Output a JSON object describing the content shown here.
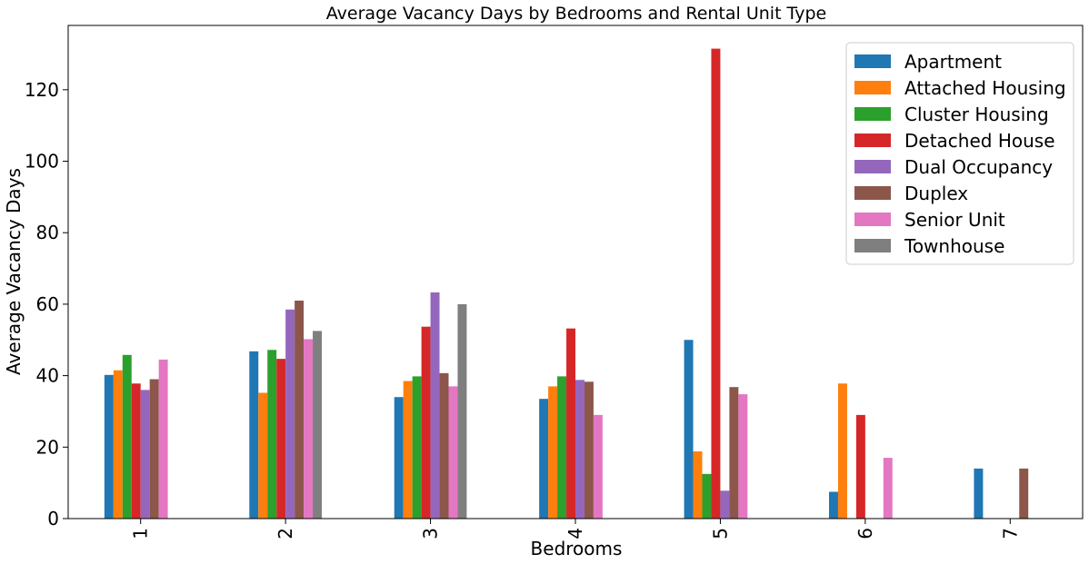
{
  "chart_data": {
    "type": "bar",
    "title": "Average Vacancy Days by Bedrooms and Rental Unit Type",
    "xlabel": "Bedrooms",
    "ylabel": "Average Vacancy Days",
    "categories": [
      "1",
      "2",
      "3",
      "4",
      "5",
      "6",
      "7"
    ],
    "ylim": [
      0,
      138
    ],
    "yticks": [
      0,
      20,
      40,
      60,
      80,
      100,
      120
    ],
    "grid": false,
    "legend_position": "top-right",
    "series": [
      {
        "name": "Apartment",
        "color": "#1f77b4",
        "values": [
          40.2,
          46.8,
          34.0,
          33.5,
          50.0,
          7.5,
          14.0
        ]
      },
      {
        "name": "Attached Housing",
        "color": "#ff7f0e",
        "values": [
          41.5,
          35.2,
          38.5,
          37.0,
          18.8,
          37.8,
          null
        ]
      },
      {
        "name": "Cluster Housing",
        "color": "#2ca02c",
        "values": [
          45.8,
          47.2,
          39.8,
          39.8,
          12.5,
          null,
          null
        ]
      },
      {
        "name": "Detached House",
        "color": "#d62728",
        "values": [
          37.8,
          44.7,
          53.7,
          53.2,
          131.5,
          29.0,
          null
        ]
      },
      {
        "name": "Dual Occupancy",
        "color": "#9467bd",
        "values": [
          36.0,
          58.5,
          63.3,
          38.8,
          7.8,
          null,
          null
        ]
      },
      {
        "name": "Duplex",
        "color": "#8c564b",
        "values": [
          39.0,
          61.0,
          40.7,
          38.3,
          36.8,
          null,
          14.0
        ]
      },
      {
        "name": "Senior Unit",
        "color": "#e377c2",
        "values": [
          44.5,
          50.2,
          37.0,
          29.0,
          34.8,
          17.0,
          null
        ]
      },
      {
        "name": "Townhouse",
        "color": "#7f7f7f",
        "values": [
          null,
          52.5,
          60.0,
          null,
          null,
          null,
          null
        ]
      }
    ]
  }
}
